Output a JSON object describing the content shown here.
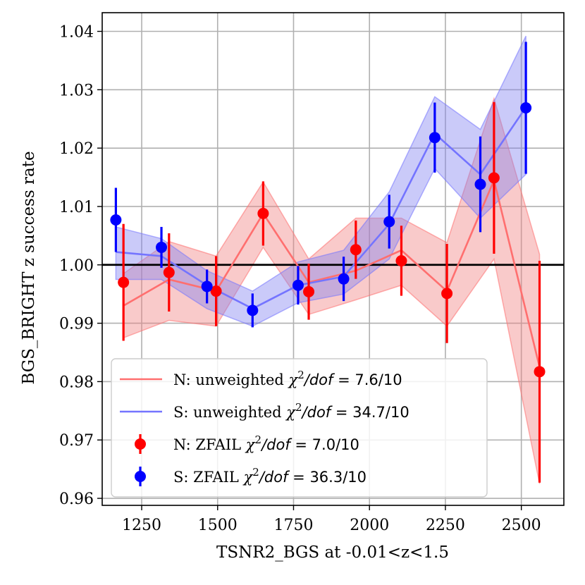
{
  "chart_data": {
    "type": "line",
    "xlabel": "TSNR2_BGS at -0.01<z<1.5",
    "ylabel": "BGS_BRIGHT z success rate",
    "xlim": [
      1120,
      2640
    ],
    "ylim": [
      0.9588,
      1.0432
    ],
    "xticks": [
      1250,
      1500,
      1750,
      2000,
      2250,
      2500
    ],
    "yticks": [
      0.96,
      0.97,
      0.98,
      0.99,
      1.0,
      1.01,
      1.02,
      1.03,
      1.04
    ],
    "ytick_labels": [
      "0.96",
      "0.97",
      "0.98",
      "0.99",
      "1.00",
      "1.01",
      "1.02",
      "1.03",
      "1.04"
    ],
    "xtick_labels": [
      "1250",
      "1500",
      "1750",
      "2000",
      "2250",
      "2500"
    ],
    "grid": true,
    "reference_line": 1.0,
    "legend_position": "lower-left",
    "colors": {
      "N": "#ff0000",
      "S": "#0000ff",
      "N_line": "#ff6f6f",
      "S_line": "#7474ff",
      "N_band": "#f08080",
      "S_band": "#8080f0"
    },
    "series": [
      {
        "name": "N: unweighted",
        "legend": {
          "prefix": "N: unweighted ",
          "chi2": "7.6/10"
        },
        "kind": "band",
        "color": "#ff6f6f",
        "x": [
          1190,
          1340,
          1495,
          1650,
          1800,
          1955,
          2105,
          2255,
          2410,
          2560
        ],
        "y": [
          0.993,
          0.9975,
          0.9955,
          1.0088,
          0.997,
          0.999,
          1.0025,
          0.9955,
          1.0145,
          0.9825
        ],
        "lower": [
          0.9875,
          0.9905,
          0.9895,
          1.003,
          0.9915,
          0.994,
          0.9965,
          0.9895,
          1.001,
          0.9625
        ],
        "upper": [
          0.9985,
          1.004,
          1.0015,
          1.0142,
          1.001,
          1.008,
          1.008,
          1.0038,
          1.0285,
          1.0018
        ]
      },
      {
        "name": "S: unweighted",
        "legend": {
          "prefix": "S: unweighted ",
          "chi2": "34.7/10"
        },
        "kind": "band",
        "color": "#7474ff",
        "x": [
          1165,
          1315,
          1465,
          1615,
          1765,
          1915,
          2065,
          2215,
          2365,
          2515
        ],
        "y": [
          1.0022,
          1.0015,
          0.9965,
          0.9925,
          0.9965,
          0.998,
          1.007,
          1.0225,
          1.0155,
          1.027
        ],
        "lower": [
          0.9975,
          0.9975,
          0.9925,
          0.9895,
          0.9935,
          0.995,
          1.001,
          1.0165,
          1.008,
          1.0155
        ],
        "upper": [
          1.0065,
          1.0045,
          0.999,
          0.9955,
          1.0005,
          1.0025,
          1.0125,
          1.0288,
          1.0232,
          1.0392
        ]
      },
      {
        "name": "N: ZFAIL",
        "legend": {
          "prefix": "N: ZFAIL ",
          "chi2": "7.0/10"
        },
        "kind": "errorbar",
        "color": "#ff0000",
        "x": [
          1190,
          1340,
          1495,
          1650,
          1800,
          1955,
          2105,
          2255,
          2410,
          2560
        ],
        "y": [
          0.997,
          0.9987,
          0.9955,
          1.0088,
          0.9954,
          1.0026,
          1.0007,
          0.9951,
          1.0149,
          0.9817
        ],
        "err": [
          0.01,
          0.0067,
          0.006,
          0.0055,
          0.0048,
          0.005,
          0.006,
          0.0085,
          0.013,
          0.019
        ]
      },
      {
        "name": "S: ZFAIL",
        "legend": {
          "prefix": "S: ZFAIL ",
          "chi2": "36.3/10"
        },
        "kind": "errorbar",
        "color": "#0000ff",
        "x": [
          1165,
          1315,
          1465,
          1615,
          1765,
          1915,
          2065,
          2215,
          2365,
          2515
        ],
        "y": [
          1.0077,
          1.003,
          0.9963,
          0.9922,
          0.9965,
          0.9976,
          1.0074,
          1.0218,
          1.0138,
          1.0269
        ],
        "err": [
          0.0055,
          0.0035,
          0.0029,
          0.0029,
          0.0033,
          0.0038,
          0.0046,
          0.006,
          0.0082,
          0.0113
        ]
      }
    ]
  }
}
